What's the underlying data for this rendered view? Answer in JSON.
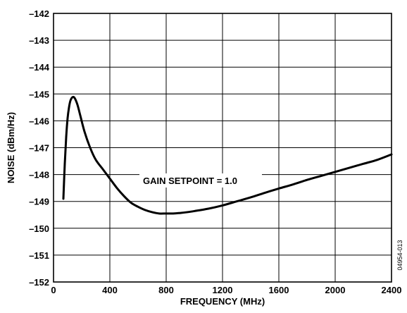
{
  "chart_data": {
    "type": "line",
    "title": "",
    "xlabel": "FREQUENCY (MHz)",
    "ylabel": "NOISE (dBm/Hz)",
    "xlim": [
      0,
      2400
    ],
    "ylim": [
      -152,
      -142
    ],
    "x_ticks": [
      0,
      400,
      800,
      1200,
      1600,
      2000,
      2400
    ],
    "y_ticks": [
      -142,
      -143,
      -144,
      -145,
      -146,
      -147,
      -148,
      -149,
      -150,
      -151,
      -152
    ],
    "grid": true,
    "legend": "none",
    "annotation": "GAIN SETPOINT = 1.0",
    "figure_id": "04954-013",
    "series": [
      {
        "values_x": [
          70,
          80,
          90,
          100,
          110,
          120,
          135,
          150,
          170,
          190,
          220,
          260,
          300,
          350,
          400,
          450,
          500,
          550,
          600,
          650,
          700,
          750,
          800,
          850,
          900,
          950,
          1000,
          1100,
          1200,
          1300,
          1400,
          1500,
          1600,
          1700,
          1800,
          1900,
          2000,
          2100,
          2200,
          2300,
          2400
        ],
        "values_y": [
          -148.9,
          -147.6,
          -146.6,
          -145.9,
          -145.5,
          -145.25,
          -145.12,
          -145.15,
          -145.4,
          -145.8,
          -146.4,
          -147.0,
          -147.45,
          -147.8,
          -148.15,
          -148.5,
          -148.8,
          -149.05,
          -149.2,
          -149.32,
          -149.4,
          -149.45,
          -149.45,
          -149.45,
          -149.43,
          -149.4,
          -149.36,
          -149.27,
          -149.15,
          -149.0,
          -148.85,
          -148.68,
          -148.52,
          -148.37,
          -148.2,
          -148.05,
          -147.9,
          -147.75,
          -147.6,
          -147.45,
          -147.25
        ]
      }
    ]
  }
}
